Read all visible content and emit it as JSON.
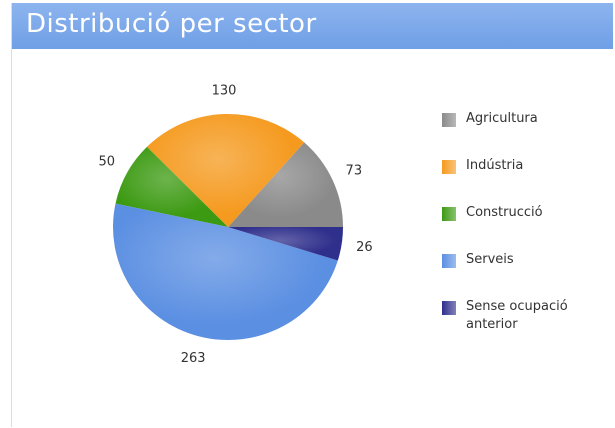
{
  "chart_data": {
    "type": "pie",
    "title": "Distribució per sector",
    "categories": [
      "Agricultura",
      "Indústria",
      "Construcció",
      "Serveis",
      "Sense ocupació anterior"
    ],
    "values": [
      73,
      130,
      50,
      263,
      26
    ],
    "colors": [
      "#8a8a8a",
      "#f59a1f",
      "#3c9a12",
      "#5b8fe2",
      "#2f2f8c"
    ]
  }
}
